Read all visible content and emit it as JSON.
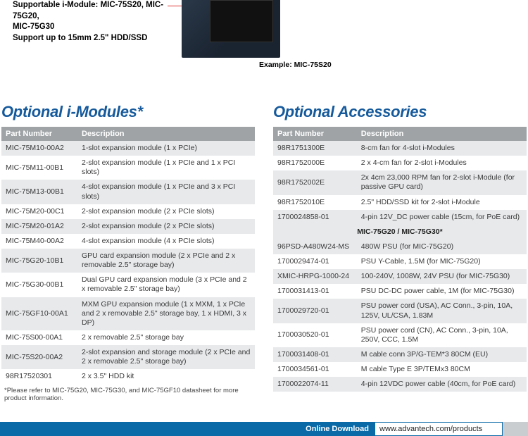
{
  "top_text_lines": [
    "Supportable i-Module: MIC-75S20, MIC-75G20,",
    "MIC-75G30",
    "Support up to 15mm 2.5\" HDD/SSD"
  ],
  "example_caption": "Example: MIC-75S20",
  "colors": {
    "heading": "#165a9c",
    "header_bg": "#9fa3a6",
    "row_alt": "#e7e9eb",
    "bar": "#0a6aa8",
    "bar_cap": "#c9cdd0"
  },
  "left": {
    "heading": "Optional i-Modules*",
    "columns": [
      "Part Number",
      "Description"
    ],
    "col_widths": [
      "30%",
      "70%"
    ],
    "rows": [
      [
        "MIC-75M10-00A2",
        "1-slot expansion module (1 x PCIe)"
      ],
      [
        "MIC-75M11-00B1",
        "2-slot expansion module (1 x PCIe and 1 x PCI slots)"
      ],
      [
        "MIC-75M13-00B1",
        "4-slot expansion module (1 x PCIe and 3 x PCI slots)"
      ],
      [
        "MIC-75M20-00C1",
        "2-slot expansion module (2 x PCIe slots)"
      ],
      [
        "MIC-75M20-01A2",
        "2-slot expansion module (2 x PCIe slots)"
      ],
      [
        "MIC-75M40-00A2",
        "4-slot expansion module (4 x PCIe slots)"
      ],
      [
        "MIC-75G20-10B1",
        "GPU card expansion module (2 x PCIe and 2 x removable 2.5\" storage bay)"
      ],
      [
        "MIC-75G30-00B1",
        "Dual GPU card expansion module (3 x PCIe and 2 x removable 2.5\" storage bay)"
      ],
      [
        "MIC-75GF10-00A1",
        "MXM GPU expansion module (1 x MXM, 1 x PCIe and 2 x removable 2.5\" storage bay, 1 x HDMI, 3 x DP)"
      ],
      [
        "MIC-75S00-00A1",
        "2 x removable 2.5\" storage bay"
      ],
      [
        "MIC-75S20-00A2",
        "2-slot expansion and storage module (2 x PCIe and 2 x removable 2.5\" storage bay)"
      ],
      [
        "98R17520301",
        "2 x 3.5\" HDD kit"
      ]
    ],
    "footnote": "*Please refer to MIC-75G20, MIC-75G30, and MIC-75GF10 datasheet for more product information."
  },
  "right": {
    "heading": "Optional Accessories",
    "columns": [
      "Part Number",
      "Description"
    ],
    "col_widths": [
      "33%",
      "67%"
    ],
    "rows_a": [
      [
        "98R1751300E",
        "8-cm fan for 4-slot i-Modules"
      ],
      [
        "98R1752000E",
        "2 x 4-cm fan for 2-slot i-Modules"
      ],
      [
        "98R1752002E",
        "2x 4cm 23,000 RPM fan for 2-slot i-Module (for passive GPU card)"
      ],
      [
        "98R1752010E",
        "2.5\" HDD/SSD kit for 2-slot i-Module"
      ],
      [
        "1700024858-01",
        "4-pin 12V_DC power cable (15cm, for PoE card)"
      ]
    ],
    "subheader": "MIC-75G20 / MIC-75G30*",
    "rows_b": [
      [
        "96PSD-A480W24-MS",
        "480W PSU (for MIC-75G20)"
      ],
      [
        "1700029474-01",
        "PSU Y-Cable, 1.5M (for MIC-75G20)"
      ],
      [
        "XMIC-HRPG-1000-24",
        "100-240V, 1008W, 24V PSU (for MIC-75G30)"
      ],
      [
        "1700031413-01",
        "PSU DC-DC power cable, 1M (for MIC-75G30)"
      ],
      [
        "1700029720-01",
        "PSU power cord (USA), AC Conn., 3-pin, 10A, 125V, UL/CSA, 1.83M"
      ],
      [
        "1700030520-01",
        "PSU power cord (CN), AC Conn., 3-pin, 10A, 250V, CCC, 1.5M"
      ],
      [
        "1700031408-01",
        "M cable conn 3P/G-TEM*3 80CM (EU)"
      ],
      [
        "1700034561-01",
        "M cable Type E 3P/TEMx3 80CM"
      ],
      [
        "1700022074-11",
        "4-pin 12VDC power cable (40cm, for PoE card)"
      ]
    ]
  },
  "download": {
    "label": "Online Download",
    "url": "www.advantech.com/products"
  }
}
